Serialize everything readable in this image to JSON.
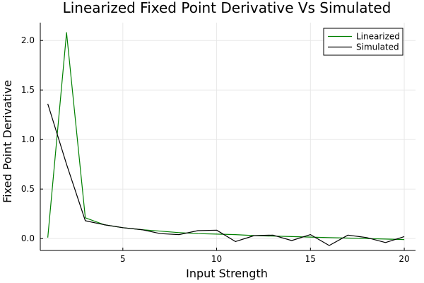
{
  "chart_data": {
    "type": "line",
    "title": "Linearized Fixed Point Derivative Vs Simulated",
    "xlabel": "Input Strength",
    "ylabel": "Fixed Point Derivative",
    "xlim": [
      0.6,
      20.6
    ],
    "ylim": [
      -0.12,
      2.18
    ],
    "xticks": [
      5,
      10,
      15,
      20
    ],
    "xtick_labels": [
      "5",
      "10",
      "15",
      "20"
    ],
    "yticks": [
      0.0,
      0.5,
      1.0,
      1.5,
      2.0
    ],
    "ytick_labels": [
      "0.0",
      "0.5",
      "1.0",
      "1.5",
      "2.0"
    ],
    "grid": true,
    "legend_position": "top-right",
    "x": [
      1,
      2,
      3,
      4,
      5,
      6,
      7,
      8,
      9,
      10,
      11,
      12,
      13,
      14,
      15,
      16,
      17,
      18,
      19,
      20
    ],
    "series": [
      {
        "name": "Linearized",
        "color": "#008000",
        "values": [
          0.01,
          2.08,
          0.21,
          0.14,
          0.11,
          0.09,
          0.075,
          0.06,
          0.05,
          0.045,
          0.04,
          0.03,
          0.025,
          0.02,
          0.015,
          0.01,
          0.005,
          0.0,
          -0.005,
          -0.01
        ]
      },
      {
        "name": "Simulated",
        "color": "#000000",
        "values": [
          1.36,
          0.75,
          0.18,
          0.14,
          0.11,
          0.09,
          0.05,
          0.04,
          0.08,
          0.085,
          -0.03,
          0.03,
          0.035,
          -0.02,
          0.04,
          -0.07,
          0.035,
          0.01,
          -0.04,
          0.02
        ]
      }
    ]
  }
}
